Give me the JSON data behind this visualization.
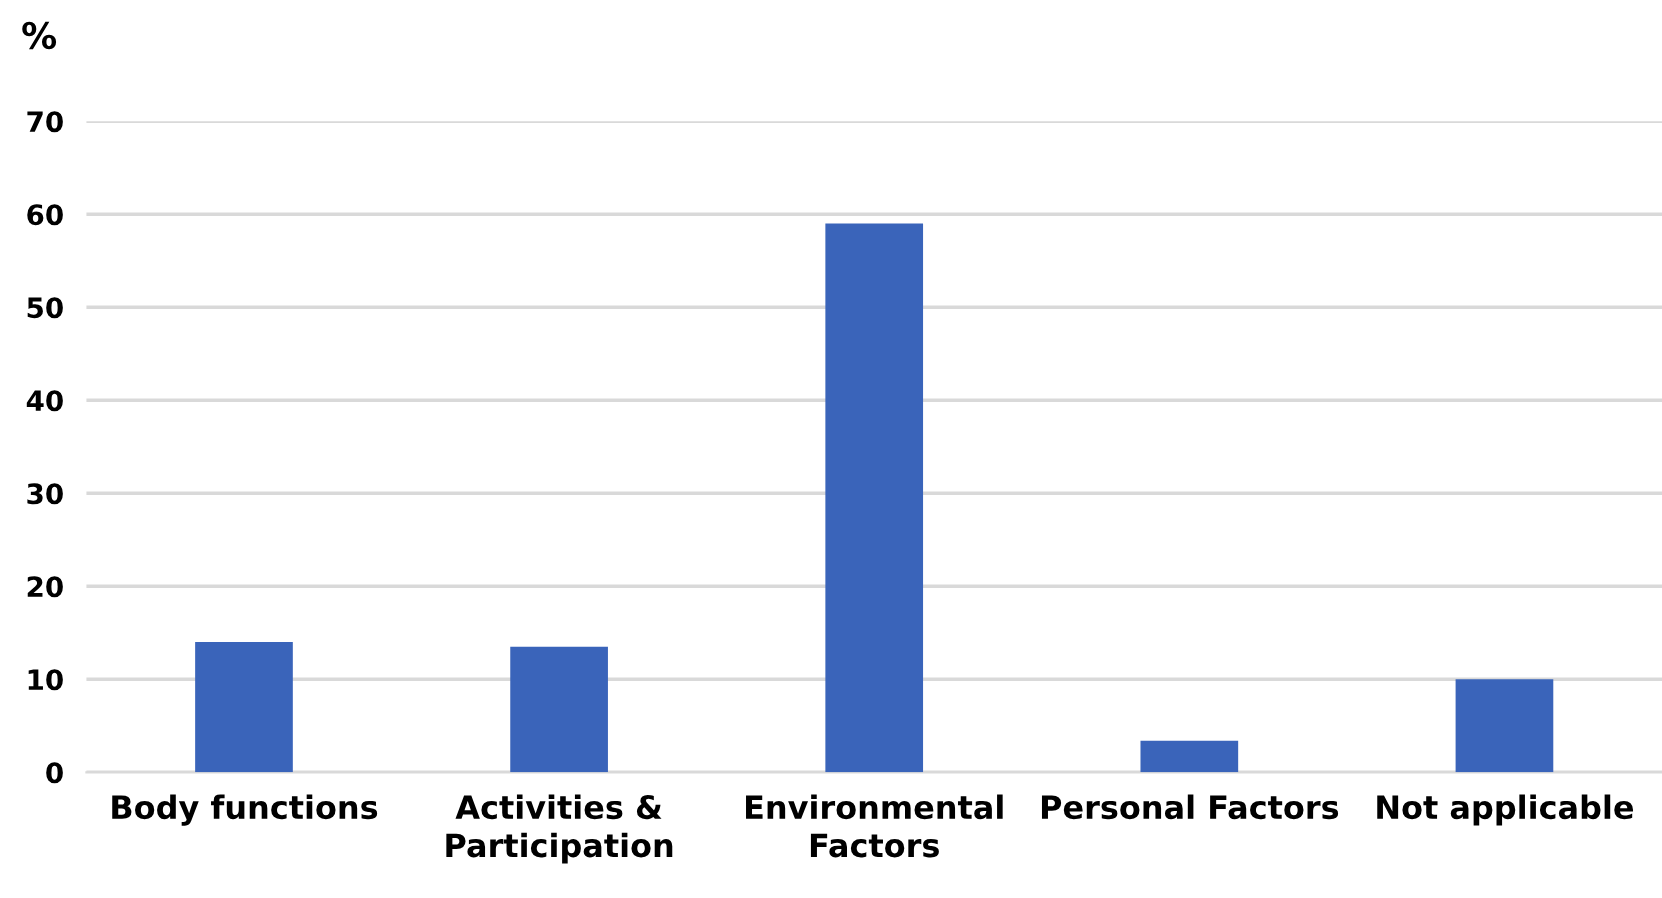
{
  "chart_data": {
    "type": "bar",
    "ylabel": "%",
    "categories": [
      "Body functions",
      "Activities &\nParticipation",
      "Environmental\nFactors",
      "Personal Factors",
      "Not applicable"
    ],
    "values": [
      14,
      13.5,
      59,
      3.4,
      10
    ],
    "color": "#3a64ba",
    "ylim": [
      0,
      70
    ],
    "yticks": [
      0,
      10,
      20,
      30,
      40,
      50,
      60,
      70
    ],
    "grid": "y"
  }
}
